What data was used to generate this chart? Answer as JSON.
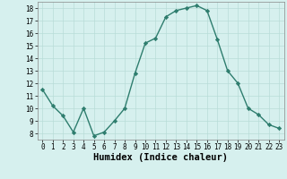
{
  "x": [
    0,
    1,
    2,
    3,
    4,
    5,
    6,
    7,
    8,
    9,
    10,
    11,
    12,
    13,
    14,
    15,
    16,
    17,
    18,
    19,
    20,
    21,
    22,
    23
  ],
  "y": [
    11.5,
    10.2,
    9.4,
    8.1,
    10.0,
    7.8,
    8.1,
    9.0,
    10.0,
    12.8,
    15.2,
    15.6,
    17.3,
    17.8,
    18.0,
    18.2,
    17.8,
    15.5,
    13.0,
    12.0,
    10.0,
    9.5,
    8.7,
    8.4
  ],
  "line_color": "#2e7d6e",
  "marker": "D",
  "marker_size": 2.2,
  "background_color": "#d6f0ee",
  "grid_color": "#b8dcd8",
  "xlabel": "Humidex (Indice chaleur)",
  "xlim": [
    -0.5,
    23.5
  ],
  "ylim": [
    7.5,
    18.5
  ],
  "yticks": [
    8,
    9,
    10,
    11,
    12,
    13,
    14,
    15,
    16,
    17,
    18
  ],
  "xticks": [
    0,
    1,
    2,
    3,
    4,
    5,
    6,
    7,
    8,
    9,
    10,
    11,
    12,
    13,
    14,
    15,
    16,
    17,
    18,
    19,
    20,
    21,
    22,
    23
  ],
  "tick_fontsize": 5.5,
  "xlabel_fontsize": 7.5,
  "line_width": 1.0
}
